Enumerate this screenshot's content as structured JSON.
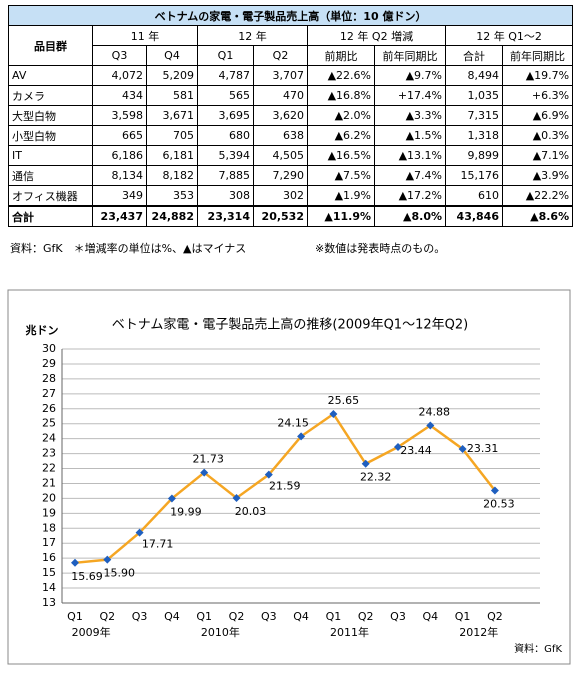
{
  "table": {
    "title": "ベトナムの家電・電子製品売上高（単位：10 億ドン）",
    "headers": [
      "品目群",
      "11 年",
      "12 年",
      "12 年 Q2 増減",
      "12 年 Q1～2"
    ],
    "subheaders": [
      "Q3",
      "Q4",
      "Q1",
      "Q2",
      "前期比",
      "前年同期比",
      "合計",
      "前年同期比"
    ],
    "rows": [
      [
        "AV",
        "4,072",
        "5,209",
        "4,787",
        "3,707",
        "▲22.6%",
        "▲9.7%",
        "8,494",
        "▲19.7%"
      ],
      [
        "カメラ",
        "434",
        "581",
        "565",
        "470",
        "▲16.8%",
        "+17.4%",
        "1,035",
        "+6.3%"
      ],
      [
        "大型白物",
        "3,598",
        "3,671",
        "3,695",
        "3,620",
        "▲2.0%",
        "▲3.3%",
        "7,315",
        "▲6.9%"
      ],
      [
        "小型白物",
        "665",
        "705",
        "680",
        "638",
        "▲6.2%",
        "▲1.5%",
        "1,318",
        "▲0.3%"
      ],
      [
        "IT",
        "6,186",
        "6,181",
        "5,394",
        "4,505",
        "▲16.5%",
        "▲13.1%",
        "9,899",
        "▲7.1%"
      ],
      [
        "通信",
        "8,134",
        "8,182",
        "7,885",
        "7,290",
        "▲7.5%",
        "▲7.4%",
        "15,176",
        "▲3.9%"
      ],
      [
        "オフィス機器",
        "349",
        "353",
        "308",
        "302",
        "▲1.9%",
        "▲17.2%",
        "610",
        "▲22.2%"
      ],
      [
        "合計",
        "23,437",
        "24,882",
        "23,314",
        "20,532",
        "▲11.9%",
        "▲8.0%",
        "43,846",
        "▲8.6%"
      ]
    ],
    "notes": [
      "資料：GfK　＊増減率の単位は%、▲はマイナス",
      "※数値は発表時点のもの。"
    ]
  },
  "chart_data": {
    "type": "line",
    "title": "ベトナム家電・電子製品売上高の推移(2009年Q1～12年Q2)",
    "y_label": "兆ドン",
    "source": "資料：GfK",
    "categories": [
      "Q1",
      "Q2",
      "Q3",
      "Q4",
      "Q1",
      "Q2",
      "Q3",
      "Q4",
      "Q1",
      "Q2",
      "Q3",
      "Q4",
      "Q1",
      "Q2"
    ],
    "years": [
      "2009年",
      "2010年",
      "2011年",
      "2012年"
    ],
    "values": [
      15.69,
      15.9,
      17.71,
      19.99,
      21.73,
      20.03,
      21.59,
      24.15,
      25.65,
      22.32,
      23.44,
      24.88,
      23.31,
      20.53
    ],
    "value_labels": [
      "15.69",
      "15.90",
      "17.71",
      "19.99",
      "21.73",
      "20.03",
      "21.59",
      "24.15",
      "25.65",
      "22.32",
      "23.44",
      "24.88",
      "23.31",
      "20.53"
    ],
    "line_color": "#f5a623",
    "marker_color": "#1f5fbf",
    "ylim": [
      13,
      30
    ],
    "yticks": [
      13,
      14,
      15,
      16,
      17,
      18,
      19,
      20,
      21,
      22,
      23,
      24,
      25,
      26,
      27,
      28,
      29,
      30
    ],
    "grid": true
  }
}
